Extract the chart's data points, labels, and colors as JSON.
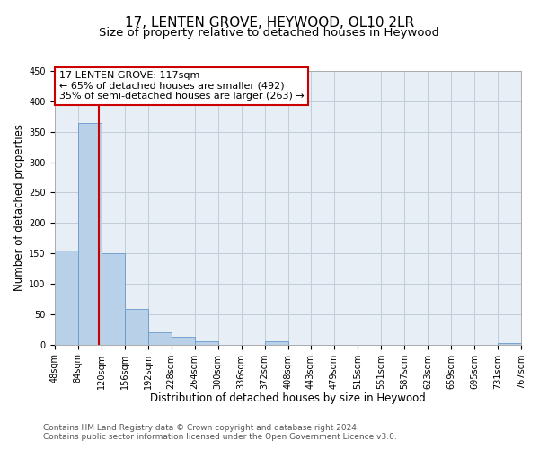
{
  "title": "17, LENTEN GROVE, HEYWOOD, OL10 2LR",
  "subtitle": "Size of property relative to detached houses in Heywood",
  "xlabel": "Distribution of detached houses by size in Heywood",
  "ylabel": "Number of detached properties",
  "bin_edges": [
    48,
    84,
    120,
    156,
    192,
    228,
    264,
    300,
    336,
    372,
    408,
    443,
    479,
    515,
    551,
    587,
    623,
    659,
    695,
    731,
    767
  ],
  "bar_heights": [
    155,
    365,
    150,
    58,
    20,
    13,
    5,
    0,
    0,
    5,
    0,
    0,
    0,
    0,
    0,
    0,
    0,
    0,
    0,
    3
  ],
  "bar_color": "#b8d0e8",
  "bar_edge_color": "#6699cc",
  "property_size": 117,
  "vline_color": "#cc0000",
  "annotation_line1": "17 LENTEN GROVE: 117sqm",
  "annotation_line2": "← 65% of detached houses are smaller (492)",
  "annotation_line3": "35% of semi-detached houses are larger (263) →",
  "annotation_box_color": "#ffffff",
  "annotation_box_edge_color": "#cc0000",
  "ylim": [
    0,
    450
  ],
  "yticks": [
    0,
    50,
    100,
    150,
    200,
    250,
    300,
    350,
    400,
    450
  ],
  "footer_line1": "Contains HM Land Registry data © Crown copyright and database right 2024.",
  "footer_line2": "Contains public sector information licensed under the Open Government Licence v3.0.",
  "background_color": "#ffffff",
  "plot_bg_color": "#e8eef5",
  "grid_color": "#c0ccd8",
  "title_fontsize": 11,
  "subtitle_fontsize": 9.5,
  "axis_label_fontsize": 8.5,
  "tick_label_fontsize": 7,
  "annotation_fontsize": 8,
  "footer_fontsize": 6.5
}
